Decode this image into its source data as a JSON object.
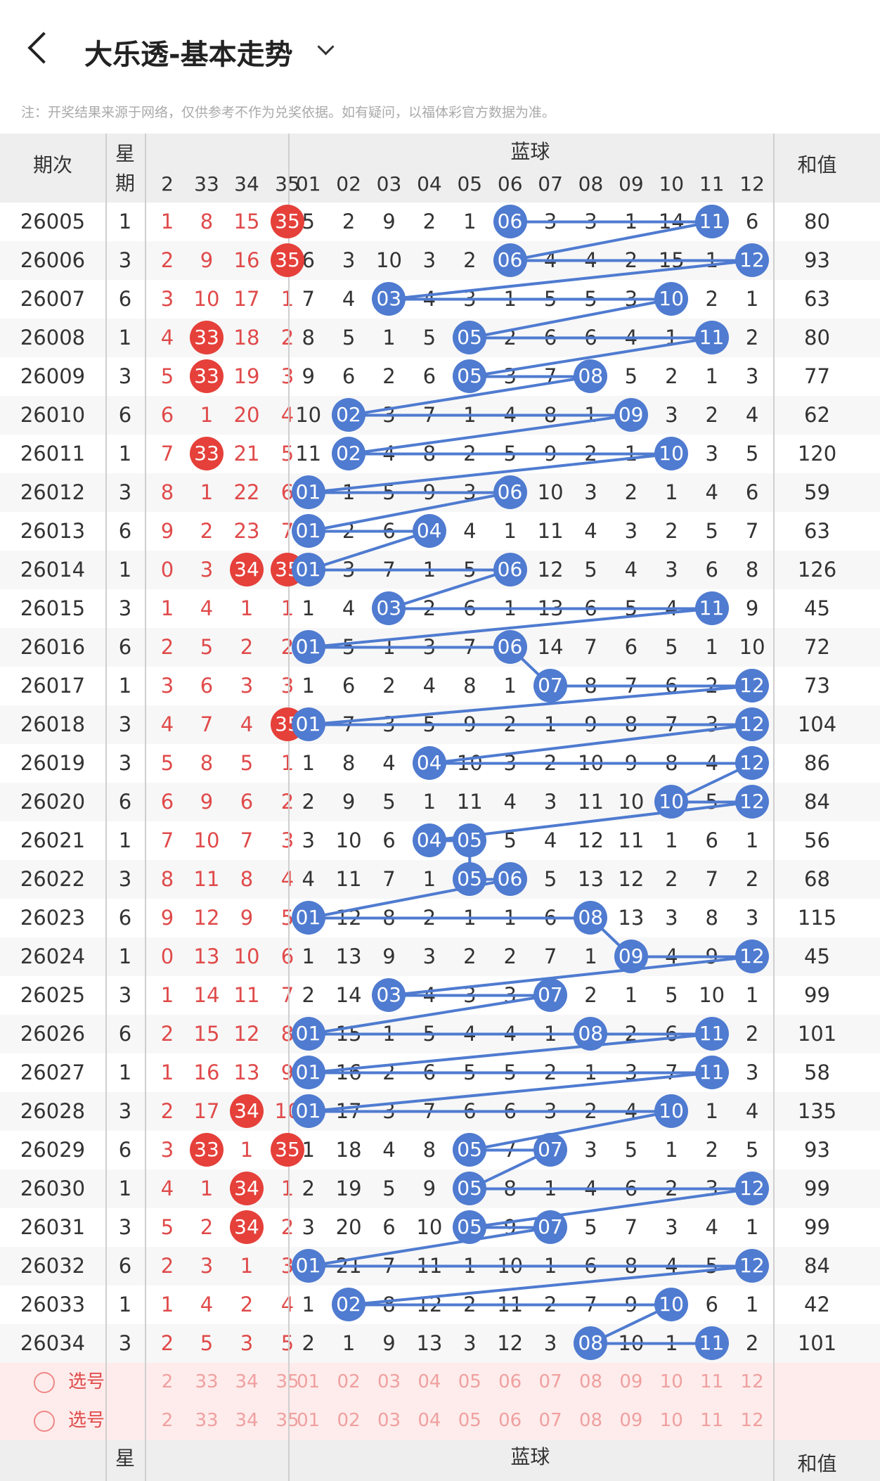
{
  "header": {
    "title": "大乐透-基本走势"
  },
  "note": "注：开奖结果来源于网络，仅供参考不作为兑奖依据。如有疑问，以福体彩官方数据为准。",
  "table": {
    "col_issue": "期次",
    "col_week_top": "星",
    "col_week_bottom": "期",
    "blue_group": "蓝球",
    "col_sum": "和值",
    "front_cols": [
      "2",
      "33",
      "34",
      "35"
    ],
    "blue_cols": [
      "01",
      "02",
      "03",
      "04",
      "05",
      "06",
      "07",
      "08",
      "09",
      "10",
      "11",
      "12"
    ],
    "rows": [
      {
        "issue": "26005",
        "week": "1",
        "front": [
          "1",
          "8",
          "15",
          "35"
        ],
        "blue": [
          "5",
          "2",
          "9",
          "2",
          "1",
          "06",
          "3",
          "3",
          "1",
          "14",
          "11",
          "6"
        ],
        "sum": "80"
      },
      {
        "issue": "26006",
        "week": "3",
        "front": [
          "2",
          "9",
          "16",
          "35"
        ],
        "blue": [
          "6",
          "3",
          "10",
          "3",
          "2",
          "06",
          "4",
          "4",
          "2",
          "15",
          "1",
          "12"
        ],
        "sum": "93"
      },
      {
        "issue": "26007",
        "week": "6",
        "front": [
          "3",
          "10",
          "17",
          "1"
        ],
        "blue": [
          "7",
          "4",
          "03",
          "4",
          "3",
          "1",
          "5",
          "5",
          "3",
          "10",
          "2",
          "1"
        ],
        "sum": "63"
      },
      {
        "issue": "26008",
        "week": "1",
        "front": [
          "4",
          "33",
          "18",
          "2"
        ],
        "blue": [
          "8",
          "5",
          "1",
          "5",
          "05",
          "2",
          "6",
          "6",
          "4",
          "1",
          "11",
          "2"
        ],
        "sum": "80"
      },
      {
        "issue": "26009",
        "week": "3",
        "front": [
          "5",
          "33",
          "19",
          "3"
        ],
        "blue": [
          "9",
          "6",
          "2",
          "6",
          "05",
          "3",
          "7",
          "08",
          "5",
          "2",
          "1",
          "3"
        ],
        "sum": "77"
      },
      {
        "issue": "26010",
        "week": "6",
        "front": [
          "6",
          "1",
          "20",
          "4"
        ],
        "blue": [
          "10",
          "02",
          "3",
          "7",
          "1",
          "4",
          "8",
          "1",
          "09",
          "3",
          "2",
          "4"
        ],
        "sum": "62"
      },
      {
        "issue": "26011",
        "week": "1",
        "front": [
          "7",
          "33",
          "21",
          "5"
        ],
        "blue": [
          "11",
          "02",
          "4",
          "8",
          "2",
          "5",
          "9",
          "2",
          "1",
          "10",
          "3",
          "5"
        ],
        "sum": "120"
      },
      {
        "issue": "26012",
        "week": "3",
        "front": [
          "8",
          "1",
          "22",
          "6"
        ],
        "blue": [
          "01",
          "1",
          "5",
          "9",
          "3",
          "06",
          "10",
          "3",
          "2",
          "1",
          "4",
          "6"
        ],
        "sum": "59"
      },
      {
        "issue": "26013",
        "week": "6",
        "front": [
          "9",
          "2",
          "23",
          "7"
        ],
        "blue": [
          "01",
          "2",
          "6",
          "04",
          "4",
          "1",
          "11",
          "4",
          "3",
          "2",
          "5",
          "7"
        ],
        "sum": "63"
      },
      {
        "issue": "26014",
        "week": "1",
        "front": [
          "0",
          "3",
          "34",
          "35"
        ],
        "blue": [
          "01",
          "3",
          "7",
          "1",
          "5",
          "06",
          "12",
          "5",
          "4",
          "3",
          "6",
          "8"
        ],
        "sum": "126"
      },
      {
        "issue": "26015",
        "week": "3",
        "front": [
          "1",
          "4",
          "1",
          "1"
        ],
        "blue": [
          "1",
          "4",
          "03",
          "2",
          "6",
          "1",
          "13",
          "6",
          "5",
          "4",
          "11",
          "9"
        ],
        "sum": "45"
      },
      {
        "issue": "26016",
        "week": "6",
        "front": [
          "2",
          "5",
          "2",
          "2"
        ],
        "blue": [
          "01",
          "5",
          "1",
          "3",
          "7",
          "06",
          "14",
          "7",
          "6",
          "5",
          "1",
          "10"
        ],
        "sum": "72"
      },
      {
        "issue": "26017",
        "week": "1",
        "front": [
          "3",
          "6",
          "3",
          "3"
        ],
        "blue": [
          "1",
          "6",
          "2",
          "4",
          "8",
          "1",
          "07",
          "8",
          "7",
          "6",
          "2",
          "12"
        ],
        "sum": "73"
      },
      {
        "issue": "26018",
        "week": "3",
        "front": [
          "4",
          "7",
          "4",
          "35"
        ],
        "blue": [
          "01",
          "7",
          "3",
          "5",
          "9",
          "2",
          "1",
          "9",
          "8",
          "7",
          "3",
          "12"
        ],
        "sum": "104"
      },
      {
        "issue": "26019",
        "week": "3",
        "front": [
          "5",
          "8",
          "5",
          "1"
        ],
        "blue": [
          "1",
          "8",
          "4",
          "04",
          "10",
          "3",
          "2",
          "10",
          "9",
          "8",
          "4",
          "12"
        ],
        "sum": "86"
      },
      {
        "issue": "26020",
        "week": "6",
        "front": [
          "6",
          "9",
          "6",
          "2"
        ],
        "blue": [
          "2",
          "9",
          "5",
          "1",
          "11",
          "4",
          "3",
          "11",
          "10",
          "10",
          "5",
          "12"
        ],
        "sum": "84"
      },
      {
        "issue": "26021",
        "week": "1",
        "front": [
          "7",
          "10",
          "7",
          "3"
        ],
        "blue": [
          "3",
          "10",
          "6",
          "04",
          "05",
          "5",
          "4",
          "12",
          "11",
          "1",
          "6",
          "1"
        ],
        "sum": "56"
      },
      {
        "issue": "26022",
        "week": "3",
        "front": [
          "8",
          "11",
          "8",
          "4"
        ],
        "blue": [
          "4",
          "11",
          "7",
          "1",
          "05",
          "06",
          "5",
          "13",
          "12",
          "2",
          "7",
          "2"
        ],
        "sum": "68"
      },
      {
        "issue": "26023",
        "week": "6",
        "front": [
          "9",
          "12",
          "9",
          "5"
        ],
        "blue": [
          "01",
          "12",
          "8",
          "2",
          "1",
          "1",
          "6",
          "08",
          "13",
          "3",
          "8",
          "3"
        ],
        "sum": "115"
      },
      {
        "issue": "26024",
        "week": "1",
        "front": [
          "0",
          "13",
          "10",
          "6"
        ],
        "blue": [
          "1",
          "13",
          "9",
          "3",
          "2",
          "2",
          "7",
          "1",
          "09",
          "4",
          "9",
          "12"
        ],
        "sum": "45"
      },
      {
        "issue": "26025",
        "week": "3",
        "front": [
          "1",
          "14",
          "11",
          "7"
        ],
        "blue": [
          "2",
          "14",
          "03",
          "4",
          "3",
          "3",
          "07",
          "2",
          "1",
          "5",
          "10",
          "1"
        ],
        "sum": "99"
      },
      {
        "issue": "26026",
        "week": "6",
        "front": [
          "2",
          "15",
          "12",
          "8"
        ],
        "blue": [
          "01",
          "15",
          "1",
          "5",
          "4",
          "4",
          "1",
          "08",
          "2",
          "6",
          "11",
          "2"
        ],
        "sum": "101"
      },
      {
        "issue": "26027",
        "week": "1",
        "front": [
          "1",
          "16",
          "13",
          "9"
        ],
        "blue": [
          "01",
          "16",
          "2",
          "6",
          "5",
          "5",
          "2",
          "1",
          "3",
          "7",
          "11",
          "3"
        ],
        "sum": "58"
      },
      {
        "issue": "26028",
        "week": "3",
        "front": [
          "2",
          "17",
          "34",
          "10"
        ],
        "blue": [
          "01",
          "17",
          "3",
          "7",
          "6",
          "6",
          "3",
          "2",
          "4",
          "10",
          "1",
          "4"
        ],
        "sum": "135"
      },
      {
        "issue": "26029",
        "week": "6",
        "front": [
          "3",
          "33",
          "1",
          "35"
        ],
        "blue": [
          "1",
          "18",
          "4",
          "8",
          "05",
          "7",
          "07",
          "3",
          "5",
          "1",
          "2",
          "5"
        ],
        "sum": "93"
      },
      {
        "issue": "26030",
        "week": "1",
        "front": [
          "4",
          "1",
          "34",
          "1"
        ],
        "blue": [
          "2",
          "19",
          "5",
          "9",
          "05",
          "8",
          "1",
          "4",
          "6",
          "2",
          "3",
          "12"
        ],
        "sum": "99"
      },
      {
        "issue": "26031",
        "week": "3",
        "front": [
          "5",
          "2",
          "34",
          "2"
        ],
        "blue": [
          "3",
          "20",
          "6",
          "10",
          "05",
          "9",
          "07",
          "5",
          "7",
          "3",
          "4",
          "1"
        ],
        "sum": "99"
      },
      {
        "issue": "26032",
        "week": "6",
        "front": [
          "2",
          "3",
          "1",
          "3"
        ],
        "blue": [
          "01",
          "21",
          "7",
          "11",
          "1",
          "10",
          "1",
          "6",
          "8",
          "4",
          "5",
          "12"
        ],
        "sum": "84"
      },
      {
        "issue": "26033",
        "week": "1",
        "front": [
          "1",
          "4",
          "2",
          "4"
        ],
        "blue": [
          "1",
          "02",
          "8",
          "12",
          "2",
          "11",
          "2",
          "7",
          "9",
          "10",
          "6",
          "1"
        ],
        "sum": "42"
      },
      {
        "issue": "26034",
        "week": "3",
        "front": [
          "2",
          "5",
          "3",
          "5"
        ],
        "blue": [
          "2",
          "1",
          "9",
          "13",
          "3",
          "12",
          "3",
          "08",
          "10",
          "1",
          "11",
          "2"
        ],
        "sum": "101"
      }
    ],
    "select_label": "选号"
  }
}
